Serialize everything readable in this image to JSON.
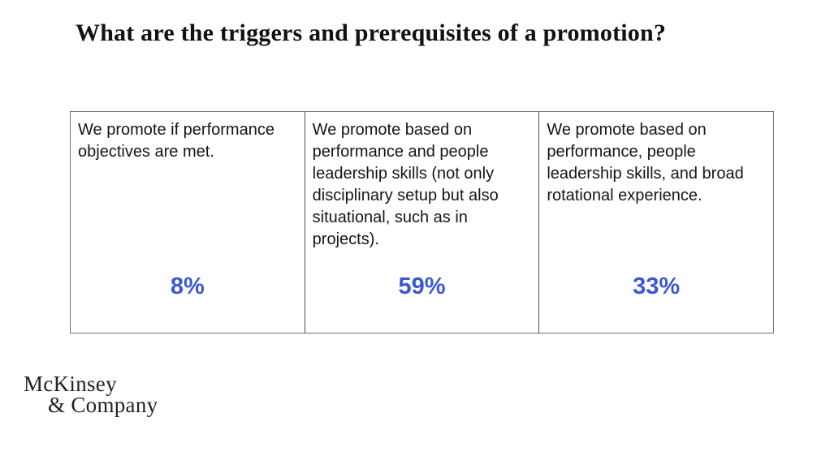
{
  "title": "What are the triggers and prerequisites of a promotion?",
  "table": {
    "columns": [
      {
        "text": "We promote if performance objectives are met.",
        "value": "8%"
      },
      {
        "text": "We promote based on performance and people leadership skills (not only disciplinary setup but also situational, such as in projects).",
        "value": "59%"
      },
      {
        "text": "We promote based on performance, people leadership skills, and broad rotational experience.",
        "value": "33%"
      }
    ]
  },
  "logo": {
    "line1": "McKinsey",
    "line2": "& Company"
  },
  "colors": {
    "value_accent": "#3b57d1",
    "body_text": "#151515",
    "table_border": "#6f6f6f",
    "background": "#ffffff"
  },
  "chart_data": {
    "type": "table",
    "title": "What are the triggers and prerequisites of a promotion?",
    "categories": [
      "We promote if performance objectives are met.",
      "We promote based on performance and people leadership skills (not only disciplinary setup but also situational, such as in projects).",
      "We promote based on performance, people leadership skills, and broad rotational experience."
    ],
    "values": [
      8,
      59,
      33
    ],
    "unit": "%"
  }
}
